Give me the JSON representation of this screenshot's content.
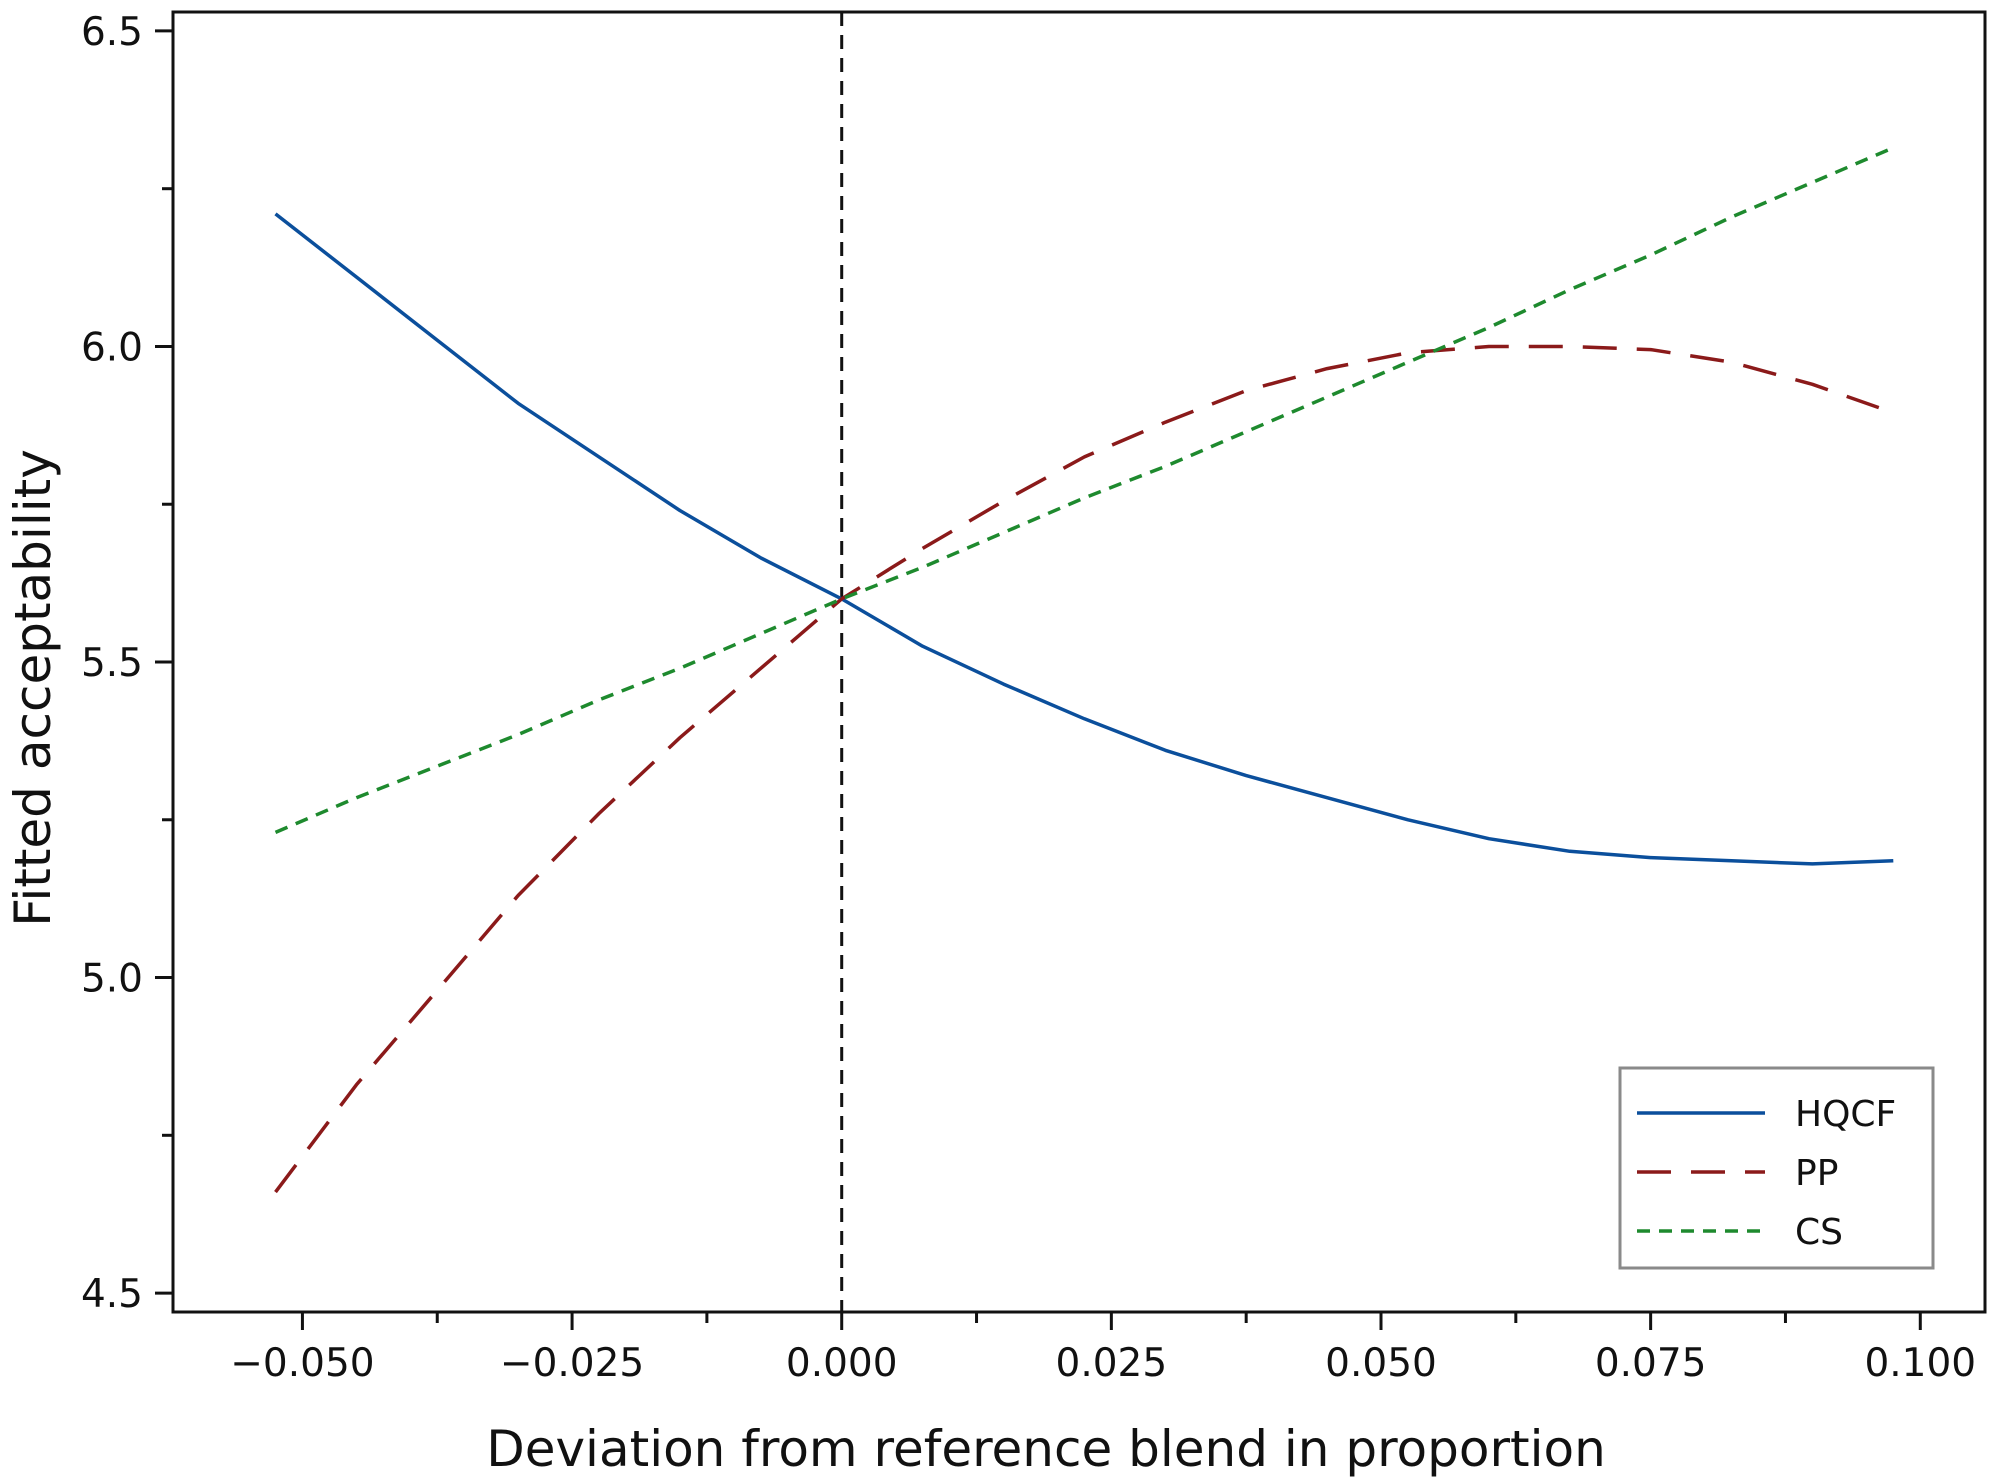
{
  "chart_data": {
    "type": "line",
    "title": "",
    "xlabel": "Deviation from reference blend in proportion",
    "ylabel": "Fitted acceptability",
    "xlim": [
      -0.062,
      0.106
    ],
    "ylim": [
      4.47,
      6.53
    ],
    "xticks": [
      -0.05,
      -0.025,
      0.0,
      0.025,
      0.05,
      0.075,
      0.1
    ],
    "xtick_labels": [
      "−0.050",
      "−0.025",
      "0.000",
      "0.025",
      "0.050",
      "0.075",
      "0.100"
    ],
    "xminor_ticks": [
      -0.0375,
      -0.0125,
      0.0125,
      0.0375,
      0.0625,
      0.0875
    ],
    "yticks": [
      4.5,
      5.0,
      5.5,
      6.0,
      6.5
    ],
    "ytick_labels": [
      "4.5",
      "5.0",
      "5.5",
      "6.0",
      "6.5"
    ],
    "yminor_ticks": [
      4.75,
      5.25,
      5.75,
      6.25
    ],
    "reference_line_x": 0.0,
    "grid": false,
    "legend_position": "bottom-right",
    "series": [
      {
        "name": "HQCF",
        "color": "#0b4f9c",
        "dash": "solid",
        "x": [
          -0.0525,
          -0.045,
          -0.0375,
          -0.03,
          -0.0225,
          -0.015,
          -0.0075,
          0.0,
          0.0075,
          0.015,
          0.0225,
          0.03,
          0.0375,
          0.045,
          0.0525,
          0.06,
          0.0675,
          0.075,
          0.0825,
          0.09,
          0.0975
        ],
        "y": [
          6.21,
          6.11,
          6.01,
          5.91,
          5.825,
          5.74,
          5.665,
          5.6,
          5.525,
          5.465,
          5.41,
          5.36,
          5.32,
          5.285,
          5.25,
          5.22,
          5.2,
          5.19,
          5.185,
          5.18,
          5.185
        ]
      },
      {
        "name": "PP",
        "color": "#8b1a1a",
        "dash": "long",
        "x": [
          -0.0525,
          -0.045,
          -0.0375,
          -0.03,
          -0.0225,
          -0.015,
          -0.0075,
          0.0,
          0.0075,
          0.015,
          0.0225,
          0.03,
          0.0375,
          0.045,
          0.0525,
          0.06,
          0.0675,
          0.075,
          0.0825,
          0.09,
          0.0975
        ],
        "y": [
          4.66,
          4.83,
          4.98,
          5.13,
          5.26,
          5.38,
          5.49,
          5.6,
          5.68,
          5.755,
          5.825,
          5.88,
          5.93,
          5.965,
          5.99,
          6.0,
          6.0,
          5.995,
          5.975,
          5.94,
          5.895
        ]
      },
      {
        "name": "CS",
        "color": "#1e8a2e",
        "dash": "short",
        "x": [
          -0.0525,
          -0.045,
          -0.0375,
          -0.03,
          -0.0225,
          -0.015,
          -0.0075,
          0.0,
          0.0075,
          0.015,
          0.0225,
          0.03,
          0.0375,
          0.045,
          0.0525,
          0.06,
          0.0675,
          0.075,
          0.0825,
          0.09,
          0.0975
        ],
        "y": [
          5.23,
          5.285,
          5.335,
          5.385,
          5.44,
          5.49,
          5.545,
          5.6,
          5.65,
          5.705,
          5.76,
          5.81,
          5.865,
          5.92,
          5.975,
          6.03,
          6.09,
          6.145,
          6.205,
          6.26,
          6.315
        ]
      }
    ]
  }
}
